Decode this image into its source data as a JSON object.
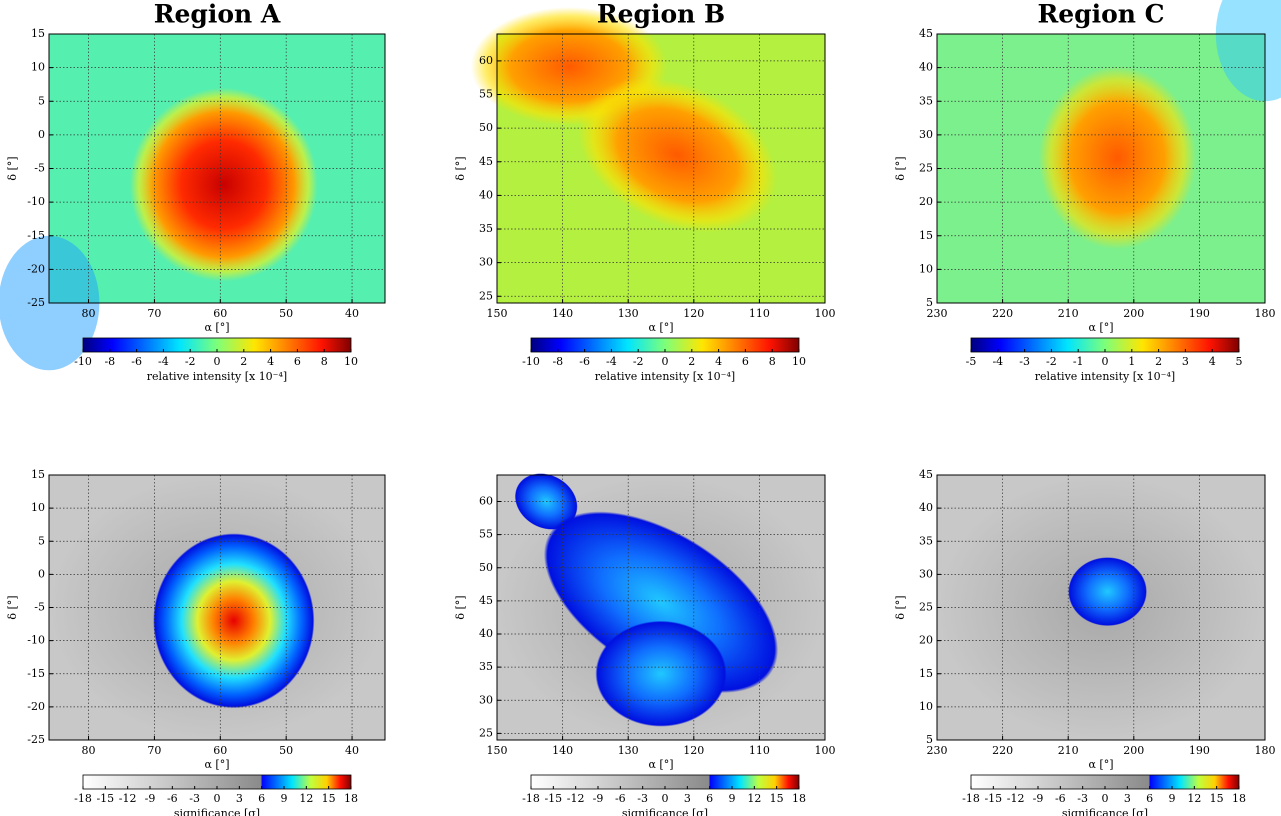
{
  "chart_data": [
    {
      "type": "heatmap",
      "title": "Region A",
      "xlabel": "α [°]",
      "ylabel": "δ [°]",
      "xlim": [
        86,
        35
      ],
      "ylim": [
        -25,
        15
      ],
      "xticks": [
        80,
        70,
        60,
        50,
        40
      ],
      "yticks": [
        -25,
        -20,
        -15,
        -10,
        -5,
        0,
        5,
        10,
        15
      ],
      "grid": true,
      "colorbar": {
        "label": "relative intensity [x 10⁻⁴]",
        "colormap": "jet",
        "lim": [
          -10,
          10
        ],
        "ticks": [
          -10,
          -8,
          -6,
          -4,
          -2,
          0,
          2,
          4,
          6,
          8,
          10
        ]
      }
    },
    {
      "type": "heatmap",
      "title": "Region B",
      "xlabel": "α [°]",
      "ylabel": "δ [°]",
      "xlim": [
        150,
        100
      ],
      "ylim": [
        24,
        64
      ],
      "xticks": [
        150,
        140,
        130,
        120,
        110,
        100
      ],
      "yticks": [
        25,
        30,
        35,
        40,
        45,
        50,
        55,
        60
      ],
      "grid": true,
      "colorbar": {
        "label": "relative intensity [x 10⁻⁴]",
        "colormap": "jet",
        "lim": [
          -10,
          10
        ],
        "ticks": [
          -10,
          -8,
          -6,
          -4,
          -2,
          0,
          2,
          4,
          6,
          8,
          10
        ]
      }
    },
    {
      "type": "heatmap",
      "title": "Region C",
      "xlabel": "α [°]",
      "ylabel": "δ [°]",
      "xlim": [
        230,
        180
      ],
      "ylim": [
        5,
        45
      ],
      "xticks": [
        230,
        220,
        210,
        200,
        190,
        180
      ],
      "yticks": [
        5,
        10,
        15,
        20,
        25,
        30,
        35,
        40,
        45
      ],
      "grid": true,
      "colorbar": {
        "label": "relative intensity [x 10⁻⁴]",
        "colormap": "jet",
        "lim": [
          -5,
          5
        ],
        "ticks": [
          -5,
          -4,
          -3,
          -2,
          -1,
          0,
          1,
          2,
          3,
          4,
          5
        ]
      }
    },
    {
      "type": "heatmap",
      "xlabel": "α [°]",
      "ylabel": "δ [°]",
      "xlim": [
        86,
        35
      ],
      "ylim": [
        -25,
        15
      ],
      "xticks": [
        80,
        70,
        60,
        50,
        40
      ],
      "yticks": [
        -25,
        -20,
        -15,
        -10,
        -5,
        0,
        5,
        10,
        15
      ],
      "grid": true,
      "colorbar": {
        "label": "significance [σ]",
        "colormap": "gray-jet",
        "lim": [
          -18,
          18
        ],
        "ticks": [
          -18,
          -15,
          -12,
          -9,
          -6,
          -3,
          0,
          3,
          6,
          9,
          12,
          15,
          18
        ]
      }
    },
    {
      "type": "heatmap",
      "xlabel": "α [°]",
      "ylabel": "δ [°]",
      "xlim": [
        150,
        100
      ],
      "ylim": [
        24,
        64
      ],
      "xticks": [
        150,
        140,
        130,
        120,
        110,
        100
      ],
      "yticks": [
        25,
        30,
        35,
        40,
        45,
        50,
        55,
        60
      ],
      "grid": true,
      "colorbar": {
        "label": "significance [σ]",
        "colormap": "gray-jet",
        "lim": [
          -18,
          18
        ],
        "ticks": [
          -18,
          -15,
          -12,
          -9,
          -6,
          -3,
          0,
          3,
          6,
          9,
          12,
          15,
          18
        ]
      }
    },
    {
      "type": "heatmap",
      "xlabel": "α [°]",
      "ylabel": "δ [°]",
      "xlim": [
        230,
        180
      ],
      "ylim": [
        5,
        45
      ],
      "xticks": [
        230,
        220,
        210,
        200,
        190,
        180
      ],
      "yticks": [
        5,
        10,
        15,
        20,
        25,
        30,
        35,
        40,
        45
      ],
      "grid": true,
      "colorbar": {
        "label": "significance [σ]",
        "colormap": "gray-jet",
        "lim": [
          -18,
          18
        ],
        "ticks": [
          -18,
          -15,
          -12,
          -9,
          -6,
          -3,
          0,
          3,
          6,
          9,
          12,
          15,
          18
        ]
      }
    }
  ]
}
